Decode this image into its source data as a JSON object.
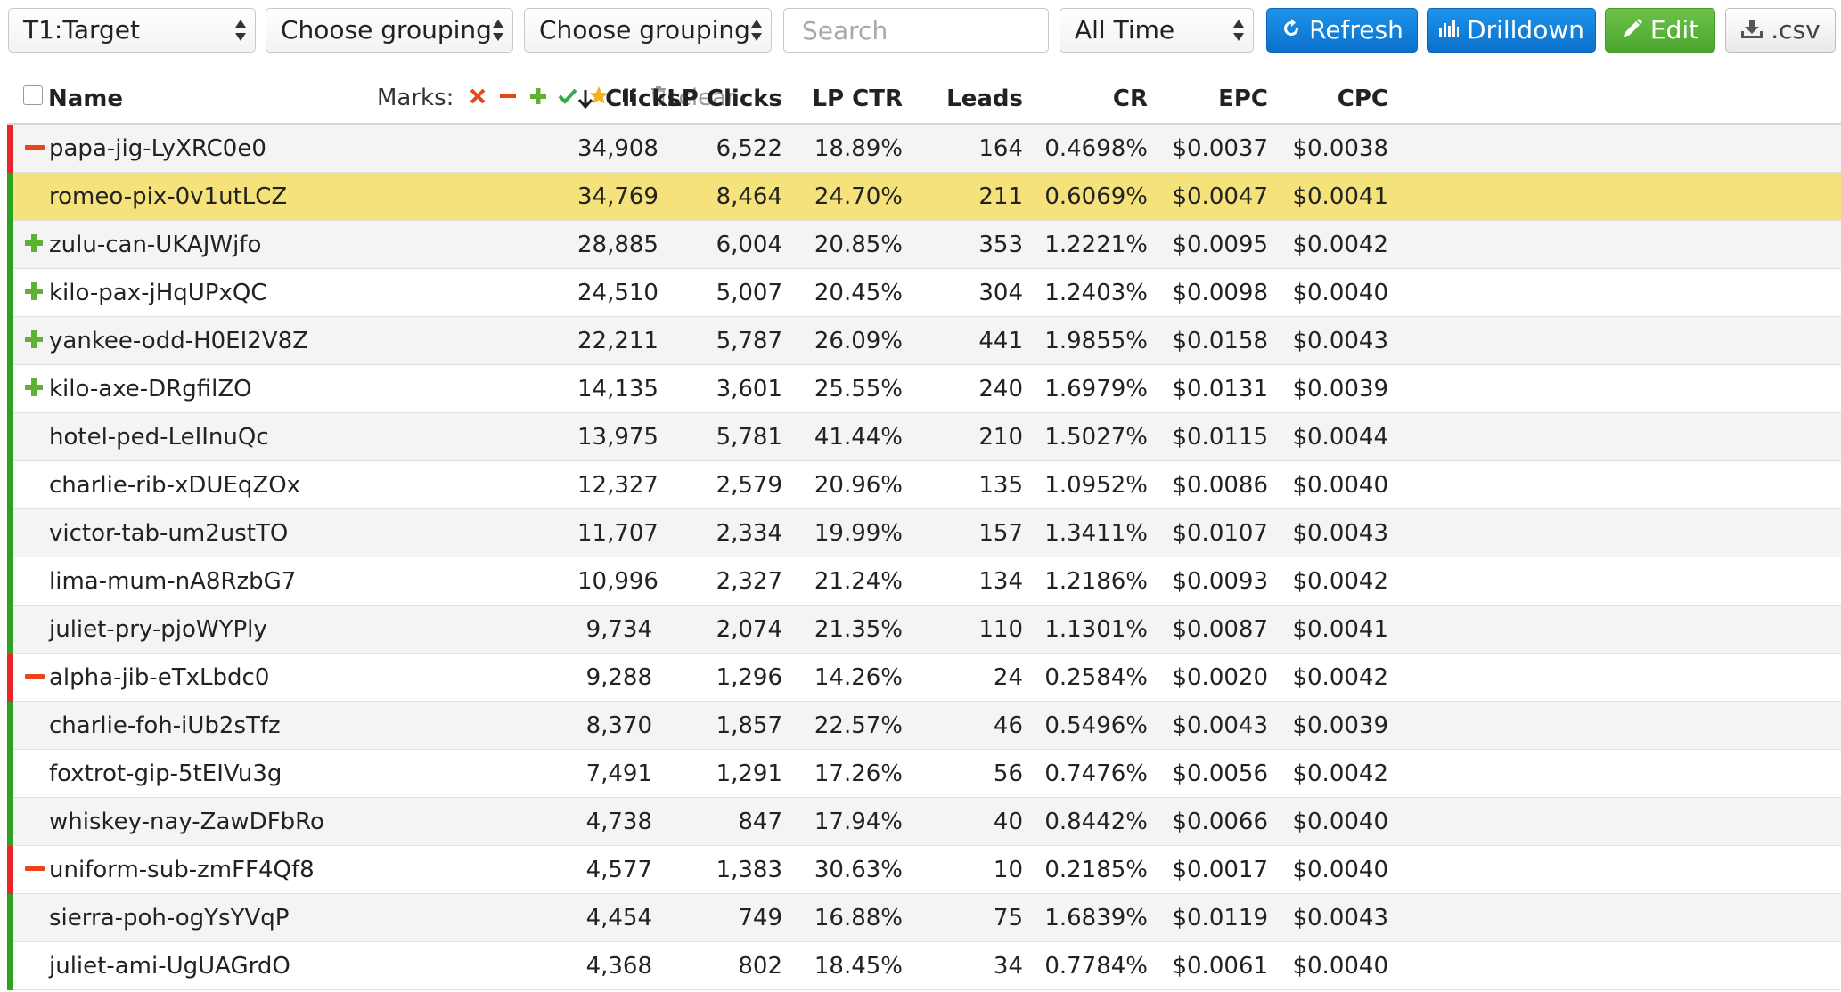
{
  "toolbar": {
    "group1": "T1:Target",
    "group2": "Choose grouping",
    "group3": "Choose grouping",
    "search_placeholder": "Search",
    "time": "All Time",
    "refresh": "Refresh",
    "drilldown": "Drilldown",
    "edit": "Edit",
    "csv": ".csv"
  },
  "colors": {
    "blue": "#0a70cc",
    "green": "#4ba52f",
    "highlight": "#f5e27a",
    "red_bar": "#e8262a",
    "green_bar": "#2ea21f"
  },
  "header": {
    "name": "Name",
    "marks_label": "Marks:",
    "clear": "clear",
    "clicks": "Clicks",
    "lp_clicks": "LP Clicks",
    "lp_ctr": "LP CTR",
    "leads": "Leads",
    "cr": "CR",
    "epc": "EPC",
    "cpc": "CPC"
  },
  "rows": [
    {
      "name": "papa-jig-LyXRC0e0",
      "clicks": "34,908",
      "lp_clicks": "6,522",
      "lp_ctr": "18.89%",
      "leads": "164",
      "cr": "0.4698%",
      "epc": "$0.0037",
      "cpc": "$0.0038",
      "mark": "minus",
      "bar": "red"
    },
    {
      "name": "romeo-pix-0v1utLCZ",
      "clicks": "34,769",
      "lp_clicks": "8,464",
      "lp_ctr": "24.70%",
      "leads": "211",
      "cr": "0.6069%",
      "epc": "$0.0047",
      "cpc": "$0.0041",
      "mark": "",
      "bar": "green",
      "highlight": true
    },
    {
      "name": "zulu-can-UKAJWjfo",
      "clicks": "28,885",
      "lp_clicks": "6,004",
      "lp_ctr": "20.85%",
      "leads": "353",
      "cr": "1.2221%",
      "epc": "$0.0095",
      "cpc": "$0.0042",
      "mark": "plus",
      "bar": "green"
    },
    {
      "name": "kilo-pax-jHqUPxQC",
      "clicks": "24,510",
      "lp_clicks": "5,007",
      "lp_ctr": "20.45%",
      "leads": "304",
      "cr": "1.2403%",
      "epc": "$0.0098",
      "cpc": "$0.0040",
      "mark": "plus",
      "bar": "green"
    },
    {
      "name": "yankee-odd-H0EI2V8Z",
      "clicks": "22,211",
      "lp_clicks": "5,787",
      "lp_ctr": "26.09%",
      "leads": "441",
      "cr": "1.9855%",
      "epc": "$0.0158",
      "cpc": "$0.0043",
      "mark": "plus",
      "bar": "green"
    },
    {
      "name": "kilo-axe-DRgfilZO",
      "clicks": "14,135",
      "lp_clicks": "3,601",
      "lp_ctr": "25.55%",
      "leads": "240",
      "cr": "1.6979%",
      "epc": "$0.0131",
      "cpc": "$0.0039",
      "mark": "plus",
      "bar": "green"
    },
    {
      "name": "hotel-ped-LeIInuQc",
      "clicks": "13,975",
      "lp_clicks": "5,781",
      "lp_ctr": "41.44%",
      "leads": "210",
      "cr": "1.5027%",
      "epc": "$0.0115",
      "cpc": "$0.0044",
      "mark": "",
      "bar": "green"
    },
    {
      "name": "charlie-rib-xDUEqZOx",
      "clicks": "12,327",
      "lp_clicks": "2,579",
      "lp_ctr": "20.96%",
      "leads": "135",
      "cr": "1.0952%",
      "epc": "$0.0086",
      "cpc": "$0.0040",
      "mark": "",
      "bar": "green"
    },
    {
      "name": "victor-tab-um2ustTO",
      "clicks": "11,707",
      "lp_clicks": "2,334",
      "lp_ctr": "19.99%",
      "leads": "157",
      "cr": "1.3411%",
      "epc": "$0.0107",
      "cpc": "$0.0043",
      "mark": "",
      "bar": "green"
    },
    {
      "name": "lima-mum-nA8RzbG7",
      "clicks": "10,996",
      "lp_clicks": "2,327",
      "lp_ctr": "21.24%",
      "leads": "134",
      "cr": "1.2186%",
      "epc": "$0.0093",
      "cpc": "$0.0042",
      "mark": "",
      "bar": "green"
    },
    {
      "name": "juliet-pry-pjoWYPly",
      "clicks": "9,734",
      "lp_clicks": "2,074",
      "lp_ctr": "21.35%",
      "leads": "110",
      "cr": "1.1301%",
      "epc": "$0.0087",
      "cpc": "$0.0041",
      "mark": "",
      "bar": "green"
    },
    {
      "name": "alpha-jib-eTxLbdc0",
      "clicks": "9,288",
      "lp_clicks": "1,296",
      "lp_ctr": "14.26%",
      "leads": "24",
      "cr": "0.2584%",
      "epc": "$0.0020",
      "cpc": "$0.0042",
      "mark": "minus",
      "bar": "red"
    },
    {
      "name": "charlie-foh-iUb2sTfz",
      "clicks": "8,370",
      "lp_clicks": "1,857",
      "lp_ctr": "22.57%",
      "leads": "46",
      "cr": "0.5496%",
      "epc": "$0.0043",
      "cpc": "$0.0039",
      "mark": "",
      "bar": "green"
    },
    {
      "name": "foxtrot-gip-5tEIVu3g",
      "clicks": "7,491",
      "lp_clicks": "1,291",
      "lp_ctr": "17.26%",
      "leads": "56",
      "cr": "0.7476%",
      "epc": "$0.0056",
      "cpc": "$0.0042",
      "mark": "",
      "bar": "green"
    },
    {
      "name": "whiskey-nay-ZawDFbRo",
      "clicks": "4,738",
      "lp_clicks": "847",
      "lp_ctr": "17.94%",
      "leads": "40",
      "cr": "0.8442%",
      "epc": "$0.0066",
      "cpc": "$0.0040",
      "mark": "",
      "bar": "green"
    },
    {
      "name": "uniform-sub-zmFF4Qf8",
      "clicks": "4,577",
      "lp_clicks": "1,383",
      "lp_ctr": "30.63%",
      "leads": "10",
      "cr": "0.2185%",
      "epc": "$0.0017",
      "cpc": "$0.0040",
      "mark": "minus",
      "bar": "red"
    },
    {
      "name": "sierra-poh-ogYsYVqP",
      "clicks": "4,454",
      "lp_clicks": "749",
      "lp_ctr": "16.88%",
      "leads": "75",
      "cr": "1.6839%",
      "epc": "$0.0119",
      "cpc": "$0.0043",
      "mark": "",
      "bar": "green"
    },
    {
      "name": "juliet-ami-UgUAGrdO",
      "clicks": "4,368",
      "lp_clicks": "802",
      "lp_ctr": "18.45%",
      "leads": "34",
      "cr": "0.7784%",
      "epc": "$0.0061",
      "cpc": "$0.0040",
      "mark": "",
      "bar": "green"
    }
  ]
}
